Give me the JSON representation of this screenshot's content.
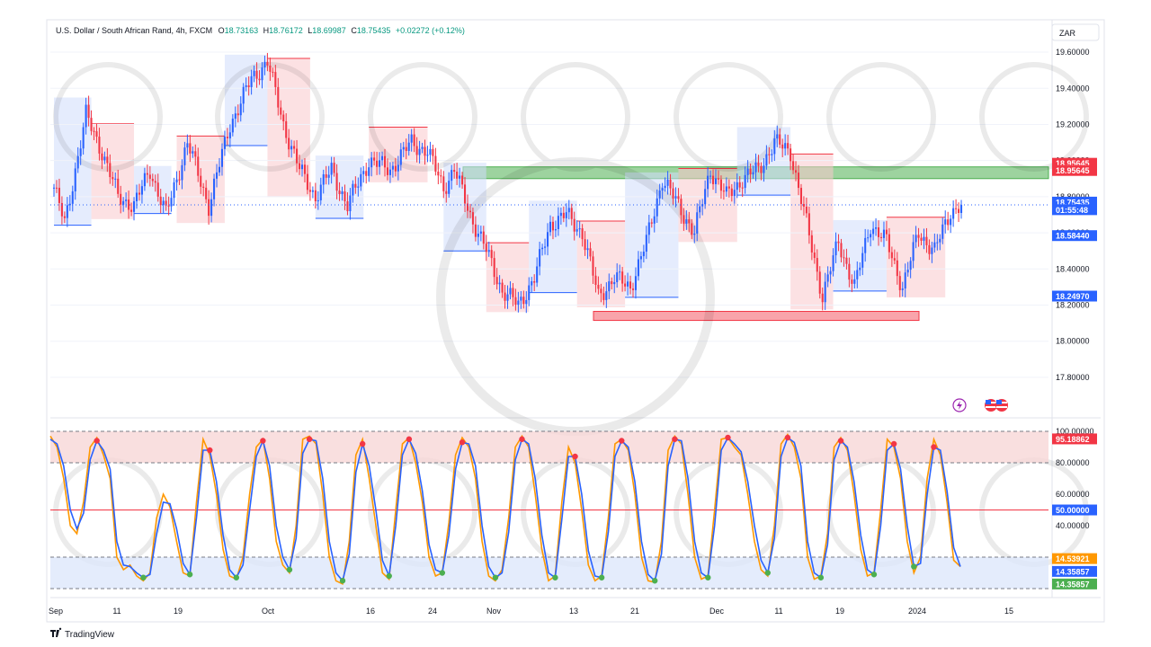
{
  "header": {
    "symbol": "U.S. Dollar / South African Rand, 4h, FXCM",
    "open_label": "O",
    "open": "18.73163",
    "high_label": "H",
    "high": "18.76172",
    "low_label": "L",
    "low": "18.69987",
    "close_label": "C",
    "close": "18.75435",
    "change": "+0.02272 (+0.12%)"
  },
  "currency_button": "ZAR",
  "branding": {
    "tradingview": "TradingView"
  },
  "colors": {
    "up": "#2962ff",
    "down": "#f23645",
    "supply_zone": "#4caf50",
    "demand_zone": "#f23645",
    "stoch_k": "#2962ff",
    "stoch_d": "#ff9800",
    "overbought_band": "#f8d7d7",
    "oversold_band": "#dde7fb"
  },
  "chart_data": [
    {
      "type": "candlestick",
      "title": "U.S. Dollar / South African Rand, 4h, FXCM",
      "ylim": [
        17.7,
        19.65
      ],
      "price_ticks": [
        "19.60000",
        "19.40000",
        "19.20000",
        "19.00000",
        "18.80000",
        "18.60000",
        "18.40000",
        "18.20000",
        "18.00000",
        "17.80000"
      ],
      "x_ticks": [
        "Sep",
        "11",
        "19",
        "Oct",
        "16",
        "24",
        "Nov",
        "13",
        "21",
        "Dec",
        "11",
        "19",
        "2024",
        "15"
      ],
      "price_labels": [
        {
          "value": "18.95645",
          "color": "#f23645"
        },
        {
          "value": "18.95645",
          "color": "#f23645"
        },
        {
          "value": "18.75435",
          "color": "#2962ff"
        },
        {
          "value": "01:55:48",
          "color": "#2962ff"
        },
        {
          "value": "18.58440",
          "color": "#2962ff"
        },
        {
          "value": "18.24970",
          "color": "#2962ff"
        }
      ],
      "close_anchors": [
        [
          0,
          18.85
        ],
        [
          4,
          18.65
        ],
        [
          12,
          19.25
        ],
        [
          18,
          19.05
        ],
        [
          24,
          18.8
        ],
        [
          30,
          18.75
        ],
        [
          36,
          18.95
        ],
        [
          42,
          18.7
        ],
        [
          50,
          19.1
        ],
        [
          58,
          18.75
        ],
        [
          66,
          19.2
        ],
        [
          74,
          19.45
        ],
        [
          80,
          19.55
        ],
        [
          86,
          19.2
        ],
        [
          92,
          18.95
        ],
        [
          98,
          18.8
        ],
        [
          104,
          18.95
        ],
        [
          110,
          18.75
        ],
        [
          118,
          19.0
        ],
        [
          126,
          18.95
        ],
        [
          134,
          19.1
        ],
        [
          140,
          19.05
        ],
        [
          146,
          18.85
        ],
        [
          150,
          18.95
        ],
        [
          156,
          18.7
        ],
        [
          162,
          18.5
        ],
        [
          168,
          18.28
        ],
        [
          174,
          18.2
        ],
        [
          180,
          18.35
        ],
        [
          186,
          18.65
        ],
        [
          192,
          18.7
        ],
        [
          198,
          18.6
        ],
        [
          204,
          18.25
        ],
        [
          210,
          18.35
        ],
        [
          216,
          18.3
        ],
        [
          222,
          18.55
        ],
        [
          228,
          18.9
        ],
        [
          234,
          18.75
        ],
        [
          240,
          18.6
        ],
        [
          246,
          18.95
        ],
        [
          252,
          18.8
        ],
        [
          258,
          18.9
        ],
        [
          264,
          18.95
        ],
        [
          270,
          19.1
        ],
        [
          276,
          19.05
        ],
        [
          282,
          18.65
        ],
        [
          288,
          18.25
        ],
        [
          294,
          18.55
        ],
        [
          300,
          18.3
        ],
        [
          306,
          18.65
        ],
        [
          312,
          18.55
        ],
        [
          318,
          18.3
        ],
        [
          324,
          18.6
        ],
        [
          330,
          18.5
        ],
        [
          336,
          18.72
        ],
        [
          340,
          18.75435
        ]
      ],
      "supply_zone": [
        18.9,
        18.965
      ],
      "demand_zone": [
        18.115,
        18.165
      ],
      "current_price": 18.75435
    },
    {
      "type": "line",
      "title": "Stochastic",
      "ylim": [
        0,
        100
      ],
      "ticks": [
        "100.00000",
        "80.00000",
        "60.00000",
        "40.00000",
        "20.00000"
      ],
      "levels": [
        80,
        50,
        20
      ],
      "value_labels": [
        {
          "value": "95.18862",
          "color": "#f23645"
        },
        {
          "value": "50.00000",
          "color": "#2962ff"
        },
        {
          "value": "14.53921",
          "color": "#ff9800"
        },
        {
          "value": "14.35857",
          "color": "#2962ff"
        },
        {
          "value": "14.35857",
          "color": "#4caf50"
        }
      ],
      "series": [
        {
          "values": [
            97,
            90,
            70,
            40,
            35,
            55,
            90,
            96,
            85,
            70,
            20,
            12,
            15,
            8,
            5,
            10,
            45,
            60,
            52,
            30,
            10,
            8,
            55,
            95,
            85,
            60,
            25,
            8,
            6,
            20,
            60,
            90,
            95,
            70,
            30,
            15,
            10,
            40,
            95,
            97,
            92,
            60,
            20,
            5,
            3,
            30,
            85,
            95,
            70,
            40,
            10,
            6,
            50,
            92,
            96,
            80,
            55,
            20,
            8,
            10,
            42,
            85,
            96,
            90,
            70,
            30,
            8,
            5,
            12,
            45,
            90,
            97,
            90,
            60,
            25,
            5,
            8,
            55,
            90,
            80,
            50,
            15,
            5,
            8,
            45,
            92,
            95,
            88,
            60,
            20,
            5,
            4,
            30,
            88,
            97,
            92,
            60,
            20,
            6,
            8,
            50,
            95,
            96,
            90,
            85,
            60,
            30,
            12,
            8,
            40,
            92,
            98,
            90,
            70,
            20,
            6,
            8,
            35,
            90,
            96,
            88,
            60,
            25,
            8,
            10,
            50,
            95,
            90,
            70,
            30,
            10,
            20,
            70,
            95,
            85,
            55,
            18,
            14
          ]
        },
        {
          "values": [
            95,
            92,
            78,
            50,
            38,
            48,
            82,
            94,
            88,
            76,
            30,
            15,
            14,
            10,
            7,
            9,
            35,
            55,
            54,
            38,
            16,
            9,
            45,
            88,
            88,
            68,
            34,
            12,
            7,
            15,
            50,
            84,
            94,
            78,
            40,
            20,
            12,
            32,
            86,
            95,
            94,
            70,
            30,
            10,
            5,
            22,
            74,
            92,
            78,
            50,
            18,
            8,
            40,
            85,
            95,
            86,
            62,
            28,
            12,
            10,
            34,
            76,
            93,
            92,
            78,
            40,
            14,
            7,
            10,
            36,
            82,
            95,
            92,
            70,
            34,
            10,
            7,
            44,
            84,
            84,
            60,
            24,
            8,
            7,
            36,
            84,
            94,
            90,
            68,
            30,
            9,
            5,
            22,
            78,
            95,
            94,
            70,
            30,
            10,
            7,
            40,
            88,
            96,
            92,
            87,
            68,
            40,
            18,
            10,
            32,
            84,
            96,
            93,
            78,
            30,
            10,
            7,
            28,
            82,
            94,
            90,
            68,
            34,
            12,
            9,
            40,
            88,
            92,
            76,
            40,
            14,
            16,
            60,
            90,
            88,
            62,
            26,
            14
          ]
        }
      ]
    }
  ]
}
